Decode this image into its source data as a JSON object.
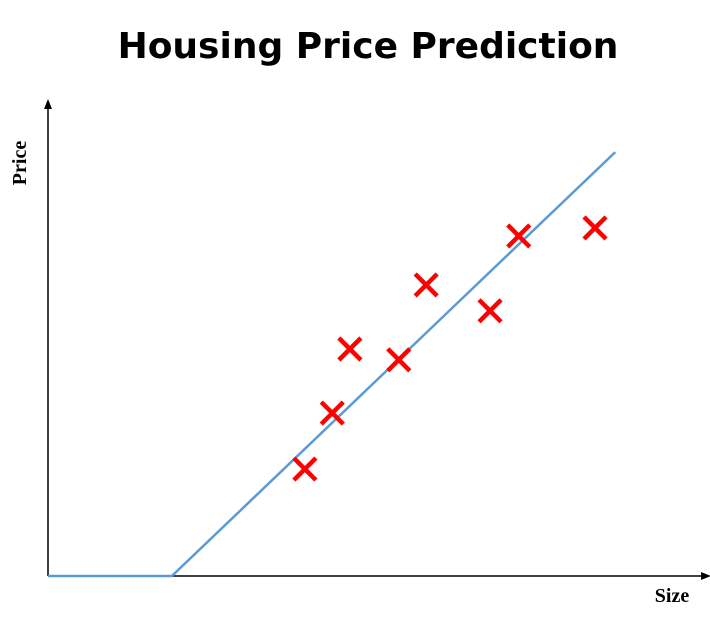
{
  "chart_data": {
    "type": "scatter",
    "title": "Housing Price Prediction",
    "x_label": "Size",
    "y_label": "Price",
    "xlim": [
      0,
      10
    ],
    "ylim": [
      0,
      10
    ],
    "series": [
      {
        "type": "scatter",
        "color": "#ff0000",
        "x": [
          3.94,
          4.36,
          4.63,
          5.38,
          5.8,
          6.78,
          7.22,
          8.39
        ],
        "values": [
          2.27,
          3.46,
          4.82,
          4.59,
          6.18,
          5.63,
          7.22,
          7.39
        ]
      },
      {
        "type": "line",
        "color": "#5b9bd5",
        "x": [
          0,
          1.9,
          8.7
        ],
        "values": [
          0,
          0,
          9.0
        ]
      }
    ]
  }
}
